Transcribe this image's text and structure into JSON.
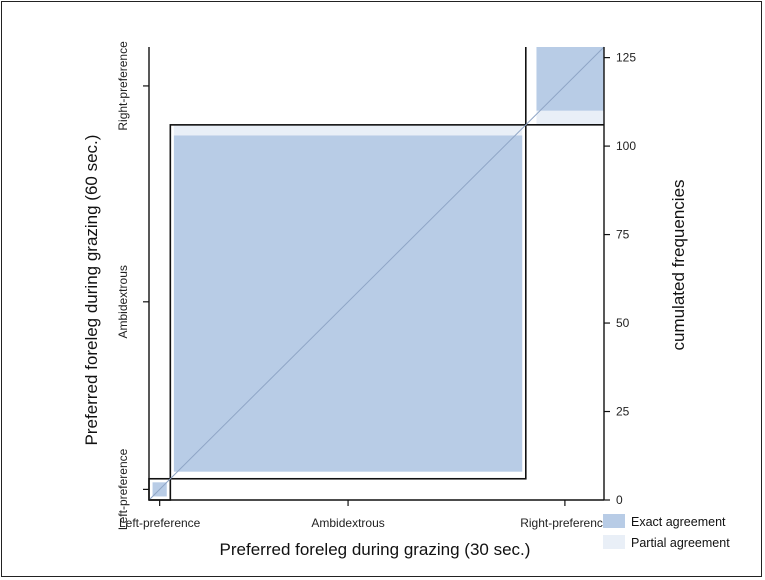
{
  "chart_data": {
    "type": "agreement",
    "xlabel": "Preferred foreleg during grazing (30 sec.)",
    "ylabel": "Preferred foreleg during grazing (60 sec.)",
    "y2label": "cumulated frequencies",
    "categories": [
      "Left-preference",
      "Ambidextrous",
      "Right-preference"
    ],
    "cumulative_x": [
      0,
      6,
      106,
      128
    ],
    "cumulative_y": [
      0,
      6,
      106,
      128
    ],
    "y2_ticks": [
      0,
      25,
      50,
      75,
      100,
      125
    ],
    "ylim": [
      0,
      128
    ],
    "cells": [
      {
        "category": "Left-preference",
        "x0": 0,
        "x1": 6,
        "y0": 0,
        "y1": 6,
        "exact_x0": 1,
        "exact_x1": 5,
        "exact_y0": 1,
        "exact_y1": 5
      },
      {
        "category": "Ambidextrous",
        "x0": 6,
        "x1": 106,
        "y0": 6,
        "y1": 106,
        "exact_x0": 7,
        "exact_x1": 105,
        "exact_y0": 8,
        "exact_y1": 103
      },
      {
        "category": "Right-preference",
        "x0": 106,
        "x1": 128,
        "y0": 106,
        "y1": 128,
        "exact_x0": 109,
        "exact_x1": 128,
        "exact_y0": 110,
        "exact_y1": 128
      }
    ],
    "partial_regions": [
      {
        "x0": 7,
        "x1": 105,
        "y0": 103,
        "y1": 106
      },
      {
        "x0": 109,
        "x1": 128,
        "y0": 106,
        "y1": 110
      }
    ],
    "legend": [
      {
        "label": "Exact agreement",
        "color": "#b8cce6"
      },
      {
        "label": "Partial agreement",
        "color": "#e9eff7"
      }
    ],
    "legend_position": "bottom-right",
    "colors": {
      "exact": "#b8cce6",
      "partial": "#e9eff7",
      "diagonal": "#8fa5c6",
      "box": "#111111"
    }
  }
}
